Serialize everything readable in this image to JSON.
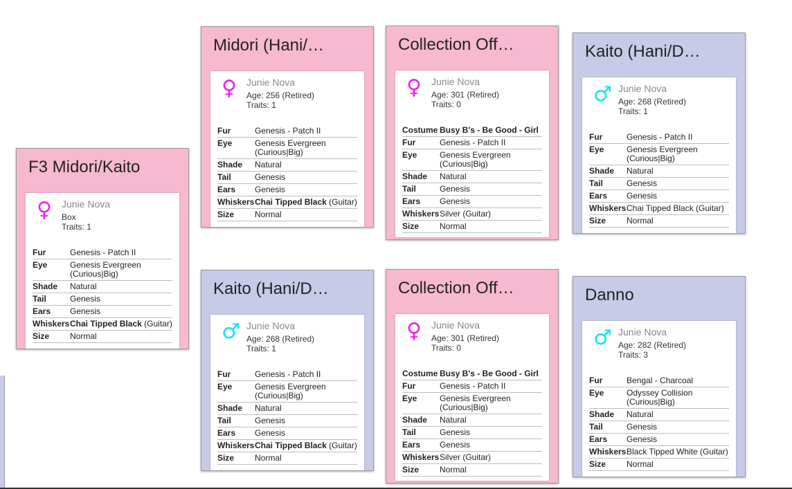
{
  "cards": [
    {
      "id": "f3-midori-kaito",
      "title": "F3 Midori/Kaito",
      "gender": "female",
      "gender_symbol": "♀",
      "owner": "Junie Nova",
      "age": "Box",
      "traits": "Traits: 1",
      "attrs": [
        {
          "k": "Fur",
          "v": "Genesis - Patch II"
        },
        {
          "k": "Eye",
          "v": "Genesis Evergreen (Curious|Big)"
        },
        {
          "k": "Shade",
          "v": "Natural"
        },
        {
          "k": "Tail",
          "v": "Genesis"
        },
        {
          "k": "Ears",
          "v": "Genesis"
        },
        {
          "k": "Whiskers",
          "v": "Chai Tipped Black",
          "bold": "Chai Tipped Black",
          "rest": " (Guitar)"
        },
        {
          "k": "Size",
          "v": "Normal"
        }
      ]
    },
    {
      "id": "midori",
      "title": "Midori (Hani/…",
      "gender": "female",
      "gender_symbol": "♀",
      "owner": "Junie Nova",
      "age": "Age: 256 (Retired)",
      "traits": "Traits: 1",
      "attrs": [
        {
          "k": "Fur",
          "v": "Genesis - Patch II"
        },
        {
          "k": "Eye",
          "v": "Genesis Evergreen (Curious|Big)"
        },
        {
          "k": "Shade",
          "v": "Natural"
        },
        {
          "k": "Tail",
          "v": "Genesis"
        },
        {
          "k": "Ears",
          "v": "Genesis"
        },
        {
          "k": "Whiskers",
          "bold": "Chai Tipped Black",
          "rest": " (Guitar)"
        },
        {
          "k": "Size",
          "v": "Normal"
        }
      ]
    },
    {
      "id": "collection-off-1",
      "title": "Collection Off…",
      "gender": "female",
      "gender_symbol": "♀",
      "owner": "Junie Nova",
      "age": "Age: 301 (Retired)",
      "traits": "Traits: 0",
      "attrs": [
        {
          "k": "Costume",
          "bold": "Busy B's - Be Good - Girl",
          "rest": ""
        },
        {
          "k": "Fur",
          "v": "Genesis - Patch II"
        },
        {
          "k": "Eye",
          "v": "Genesis Evergreen (Curious|Big)"
        },
        {
          "k": "Shade",
          "v": "Natural"
        },
        {
          "k": "Tail",
          "v": "Genesis"
        },
        {
          "k": "Ears",
          "v": "Genesis"
        },
        {
          "k": "Whiskers",
          "v": "Silver (Guitar)"
        },
        {
          "k": "Size",
          "v": "Normal"
        }
      ]
    },
    {
      "id": "kaito-1",
      "title": "Kaito (Hani/D…",
      "gender": "male",
      "gender_symbol": "♂",
      "owner": "Junie Nova",
      "age": "Age: 268 (Retired)",
      "traits": "Traits: 1",
      "attrs": [
        {
          "k": "Fur",
          "v": "Genesis - Patch II"
        },
        {
          "k": "Eye",
          "v": "Genesis Evergreen (Curious|Big)"
        },
        {
          "k": "Shade",
          "v": "Natural"
        },
        {
          "k": "Tail",
          "v": "Genesis"
        },
        {
          "k": "Ears",
          "v": "Genesis"
        },
        {
          "k": "Whiskers",
          "v": "Chai Tipped Black (Guitar)"
        },
        {
          "k": "Size",
          "v": "Normal"
        }
      ]
    },
    {
      "id": "kaito-2",
      "title": "Kaito (Hani/D…",
      "gender": "male",
      "gender_symbol": "♂",
      "owner": "Junie Nova",
      "age": "Age: 268 (Retired)",
      "traits": "Traits: 1",
      "attrs": [
        {
          "k": "Fur",
          "v": "Genesis - Patch II"
        },
        {
          "k": "Eye",
          "v": "Genesis Evergreen (Curious|Big)"
        },
        {
          "k": "Shade",
          "v": "Natural"
        },
        {
          "k": "Tail",
          "v": "Genesis"
        },
        {
          "k": "Ears",
          "v": "Genesis"
        },
        {
          "k": "Whiskers",
          "bold": "Chai Tipped Black",
          "rest": " (Guitar)"
        },
        {
          "k": "Size",
          "v": "Normal"
        }
      ]
    },
    {
      "id": "collection-off-2",
      "title": "Collection Off…",
      "gender": "female",
      "gender_symbol": "♀",
      "owner": "Junie Nova",
      "age": "Age: 301 (Retired)",
      "traits": "Traits: 0",
      "attrs": [
        {
          "k": "Costume",
          "bold": "Busy B's - Be Good - Girl",
          "rest": ""
        },
        {
          "k": "Fur",
          "v": "Genesis - Patch II"
        },
        {
          "k": "Eye",
          "v": "Genesis Evergreen (Curious|Big)"
        },
        {
          "k": "Shade",
          "v": "Natural"
        },
        {
          "k": "Tail",
          "v": "Genesis"
        },
        {
          "k": "Ears",
          "v": "Genesis"
        },
        {
          "k": "Whiskers",
          "v": "Silver (Guitar)"
        },
        {
          "k": "Size",
          "v": "Normal"
        }
      ]
    },
    {
      "id": "danno",
      "title": "Danno",
      "gender": "male",
      "gender_symbol": "♂",
      "owner": "Junie Nova",
      "age": "Age: 282 (Retired)",
      "traits": "Traits: 3",
      "attrs": [
        {
          "k": "Fur",
          "v": "Bengal - Charcoal"
        },
        {
          "k": "Eye",
          "v": "Odyssey Collision (Curious|Big)"
        },
        {
          "k": "Shade",
          "v": "Natural"
        },
        {
          "k": "Tail",
          "v": "Genesis"
        },
        {
          "k": "Ears",
          "v": "Genesis"
        },
        {
          "k": "Whiskers",
          "v": "Black Tipped White (Guitar)"
        },
        {
          "k": "Size",
          "v": "Normal"
        }
      ]
    }
  ],
  "colors": {
    "female_card": "#f7b9cf",
    "male_card": "#c7cbe7",
    "female_icon": "#f01ef0",
    "male_icon": "#19e0ee"
  }
}
